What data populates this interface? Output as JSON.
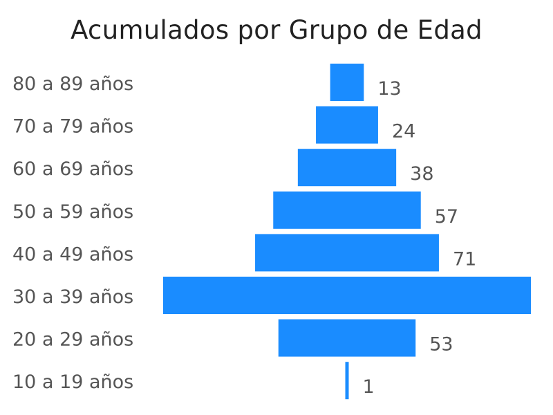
{
  "chart_data": {
    "type": "bar",
    "title": "Acumulados por Grupo de Edad",
    "xlabel": "",
    "ylabel": "",
    "categories": [
      "80 a 89 años",
      "70 a 79 años",
      "60 a 69 años",
      "50 a 59 años",
      "40 a 49 años",
      "30 a 39 años",
      "20 a 29 años",
      "10 a 19 años"
    ],
    "values": [
      13,
      24,
      38,
      57,
      71,
      null,
      53,
      1
    ],
    "colors": {
      "bar": "#1A8CFF"
    },
    "legend": "none",
    "grid": false
  }
}
